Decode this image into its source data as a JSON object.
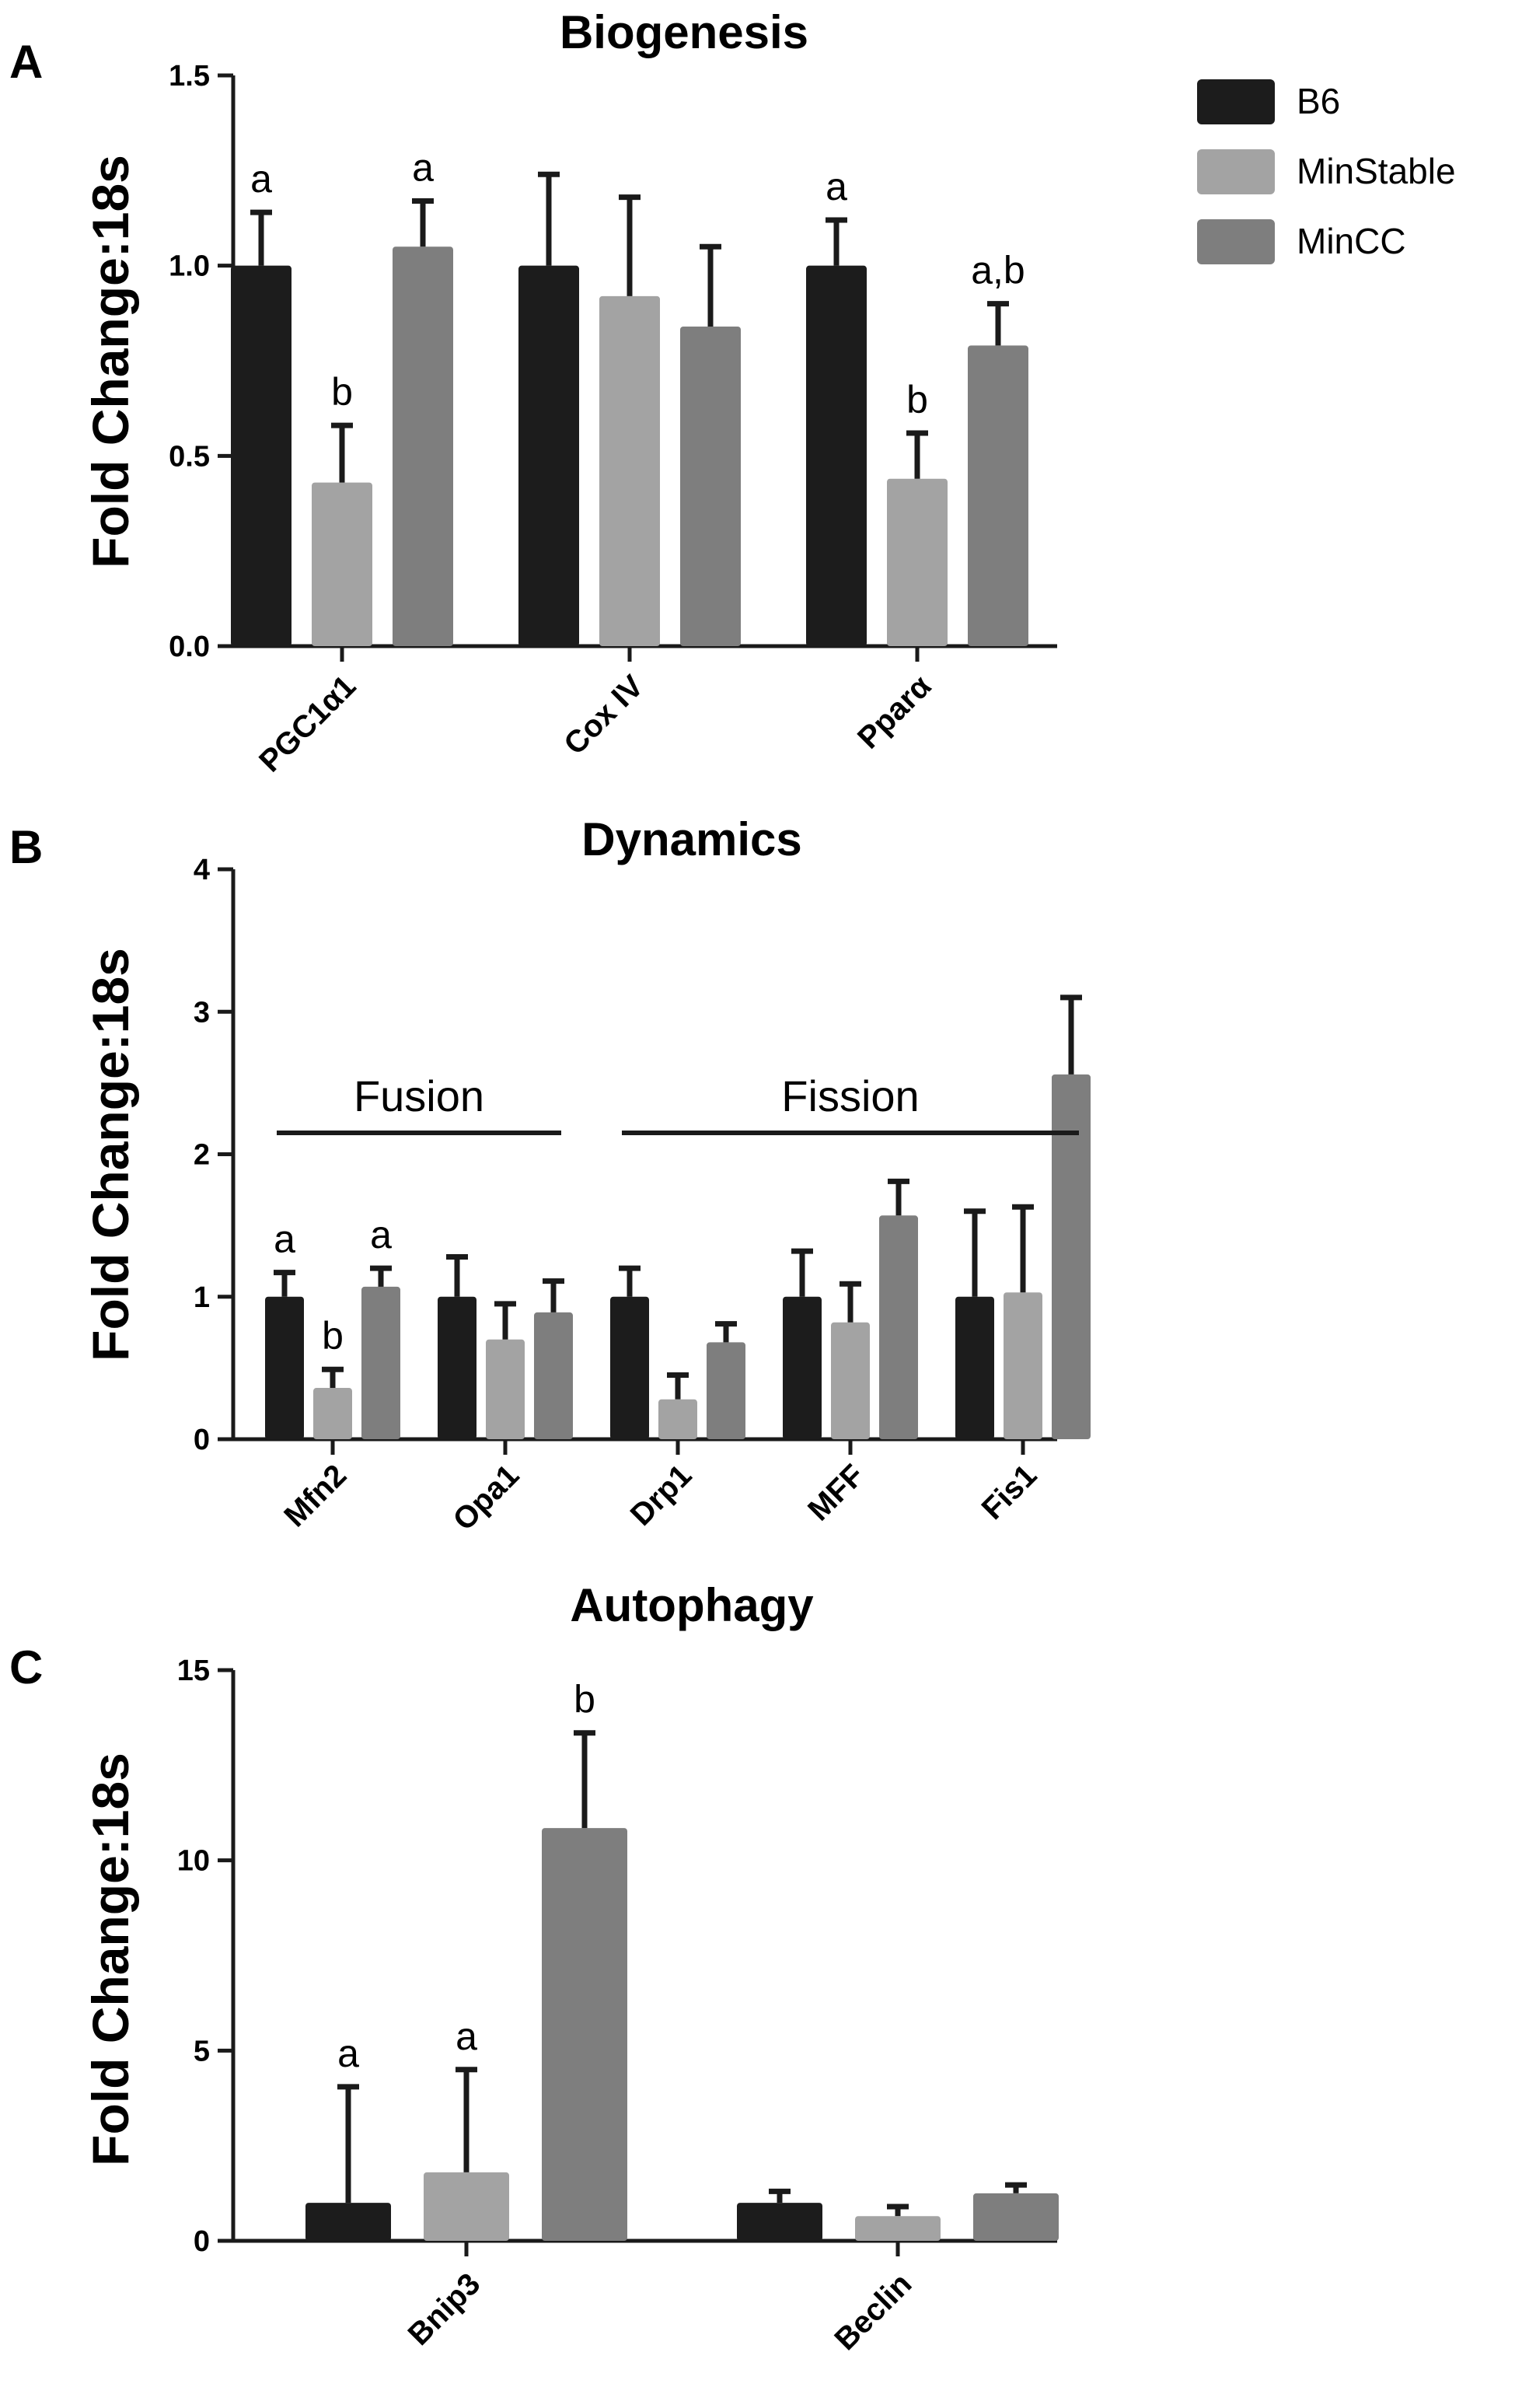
{
  "legend": [
    {
      "name": "B6",
      "color": "#1c1c1c"
    },
    {
      "name": "MinStable",
      "color": "#a3a3a3"
    },
    {
      "name": "MinCC",
      "color": "#7e7e7e"
    }
  ],
  "chart_data": [
    {
      "panel": "A",
      "type": "bar",
      "title": "Biogenesis",
      "ylabel": "Fold Change:18s",
      "ylim": [
        0,
        1.5
      ],
      "yticks": [
        "0.0",
        "0.5",
        "1.0",
        "1.5"
      ],
      "categories": [
        "PGC1α1",
        "Cox IV",
        "Pparα"
      ],
      "series": [
        {
          "name": "B6",
          "values": [
            1.0,
            1.0,
            1.0
          ],
          "errors": [
            0.14,
            0.24,
            0.12
          ],
          "labels": [
            "a",
            "",
            "a"
          ]
        },
        {
          "name": "MinStable",
          "values": [
            0.43,
            0.92,
            0.44
          ],
          "errors": [
            0.15,
            0.26,
            0.12
          ],
          "labels": [
            "b",
            "",
            "b"
          ]
        },
        {
          "name": "MinCC",
          "values": [
            1.05,
            0.84,
            0.79
          ],
          "errors": [
            0.12,
            0.21,
            0.11
          ],
          "labels": [
            "a",
            "",
            "a,b"
          ]
        }
      ]
    },
    {
      "panel": "B",
      "type": "bar",
      "title": "Dynamics",
      "ylabel": "Fold Change:18s",
      "ylim": [
        0,
        4
      ],
      "yticks": [
        "0",
        "1",
        "2",
        "3",
        "4"
      ],
      "categories": [
        "Mfn2",
        "Opa1",
        "Drp1",
        "MFF",
        "Fis1"
      ],
      "annotations": [
        {
          "text": "Fusion",
          "from_category": 0,
          "to_category": 1,
          "y": 2.15
        },
        {
          "text": "Fission",
          "from_category": 2,
          "to_category": 4,
          "y": 2.15
        }
      ],
      "series": [
        {
          "name": "B6",
          "values": [
            1.0,
            1.0,
            1.0,
            1.0,
            1.0
          ],
          "errors": [
            0.17,
            0.28,
            0.2,
            0.32,
            0.6
          ],
          "labels": [
            "a",
            "",
            "",
            "",
            ""
          ]
        },
        {
          "name": "MinStable",
          "values": [
            0.36,
            0.7,
            0.28,
            0.82,
            1.03
          ],
          "errors": [
            0.13,
            0.25,
            0.17,
            0.27,
            0.6
          ],
          "labels": [
            "b",
            "",
            "",
            "",
            ""
          ]
        },
        {
          "name": "MinCC",
          "values": [
            1.07,
            0.89,
            0.68,
            1.57,
            2.56
          ],
          "errors": [
            0.13,
            0.22,
            0.13,
            0.24,
            0.54
          ],
          "labels": [
            "a",
            "",
            "",
            "",
            ""
          ]
        }
      ]
    },
    {
      "panel": "C",
      "type": "bar",
      "title": "Autophagy",
      "ylabel": "Fold Change:18s",
      "ylim": [
        0,
        15
      ],
      "yticks": [
        "0",
        "5",
        "10",
        "15"
      ],
      "categories": [
        "Bnip3",
        "Beclin"
      ],
      "series": [
        {
          "name": "B6",
          "values": [
            1.0,
            1.0
          ],
          "errors": [
            3.05,
            0.3
          ],
          "labels": [
            "a",
            ""
          ]
        },
        {
          "name": "MinStable",
          "values": [
            1.8,
            0.65
          ],
          "errors": [
            2.7,
            0.25
          ],
          "labels": [
            "a",
            ""
          ]
        },
        {
          "name": "MinCC",
          "values": [
            10.85,
            1.25
          ],
          "errors": [
            2.5,
            0.22
          ],
          "labels": [
            "b",
            ""
          ]
        }
      ]
    }
  ]
}
